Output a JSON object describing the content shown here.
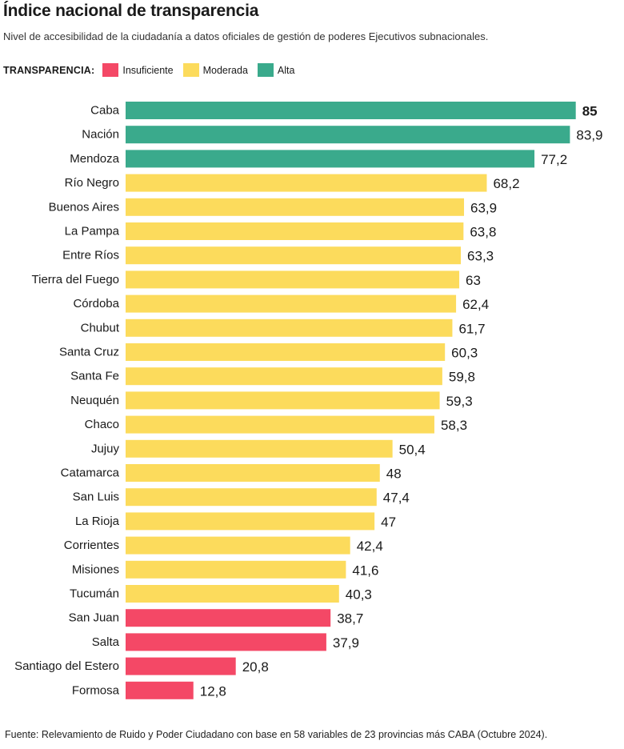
{
  "title": "Índice nacional de transparencia",
  "subtitle": "Nivel de accesibilidad de la ciudadanía a datos oficiales de gestión de poderes Ejecutivos subnacionales.",
  "legend": {
    "title": "TRANSPARENCIA:",
    "items": [
      {
        "label": "Insuficiente",
        "color": "#f44866"
      },
      {
        "label": "Moderada",
        "color": "#fcdb5c"
      },
      {
        "label": "Alta",
        "color": "#3aaa8c"
      }
    ]
  },
  "source": "Fuente: Relevamiento de Ruido y Poder Ciudadano con base en 58 variables de 23 provincias más CABA (Octubre 2024).",
  "chart_data": {
    "type": "bar",
    "orientation": "horizontal",
    "title": "Índice nacional de transparencia",
    "xlim": [
      0,
      100
    ],
    "grid": false,
    "legend_position": "top-left",
    "categories": [
      "Caba",
      "Nación",
      "Mendoza",
      "Río Negro",
      "Buenos Aires",
      "La Pampa",
      "Entre Ríos",
      "Tierra del Fuego",
      "Córdoba",
      "Chubut",
      "Santa Cruz",
      "Santa Fe",
      "Neuquén",
      "Chaco",
      "Jujuy",
      "Catamarca",
      "San Luis",
      "La Rioja",
      "Corrientes",
      "Misiones",
      "Tucumán",
      "San Juan",
      "Salta",
      "Santiago del Estero",
      "Formosa"
    ],
    "values": [
      85,
      83.9,
      77.2,
      68.2,
      63.9,
      63.8,
      63.3,
      63,
      62.4,
      61.7,
      60.3,
      59.8,
      59.3,
      58.3,
      50.4,
      48,
      47.4,
      47,
      42.4,
      41.6,
      40.3,
      38.7,
      37.9,
      20.8,
      12.8
    ],
    "value_labels": [
      "85",
      "83,9",
      "77,2",
      "68,2",
      "63,9",
      "63,8",
      "63,3",
      "63",
      "62,4",
      "61,7",
      "60,3",
      "59,8",
      "59,3",
      "58,3",
      "50,4",
      "48",
      "47,4",
      "47",
      "42,4",
      "41,6",
      "40,3",
      "38,7",
      "37,9",
      "20,8",
      "12,8"
    ],
    "levels": [
      "Alta",
      "Alta",
      "Alta",
      "Moderada",
      "Moderada",
      "Moderada",
      "Moderada",
      "Moderada",
      "Moderada",
      "Moderada",
      "Moderada",
      "Moderada",
      "Moderada",
      "Moderada",
      "Moderada",
      "Moderada",
      "Moderada",
      "Moderada",
      "Moderada",
      "Moderada",
      "Moderada",
      "Insuficiente",
      "Insuficiente",
      "Insuficiente",
      "Insuficiente"
    ]
  }
}
